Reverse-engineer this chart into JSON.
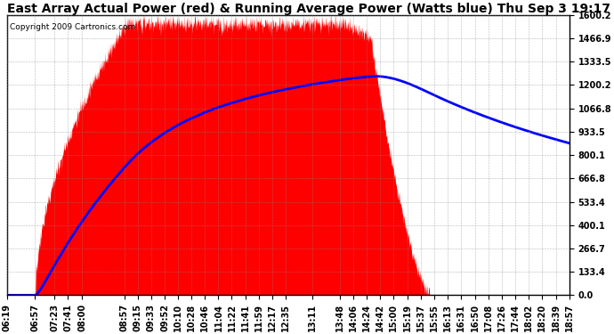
{
  "title": "East Array Actual Power (red) & Running Average Power (Watts blue) Thu Sep 3 19:17",
  "copyright": "Copyright 2009 Cartronics.com",
  "bg_color": "#ffffff",
  "plot_bg_color": "#ffffff",
  "grid_color": "#888888",
  "yticks": [
    0.0,
    133.4,
    266.7,
    400.1,
    533.4,
    666.8,
    800.1,
    933.5,
    1066.8,
    1200.2,
    1333.5,
    1466.9,
    1600.2
  ],
  "ytick_labels": [
    "0.0",
    "133.4",
    "266.7",
    "400.1",
    "533.4",
    "666.8",
    "800.1",
    "933.5",
    "1066.8",
    "1200.2",
    "1333.5",
    "1466.9",
    "1600.2"
  ],
  "ymax": 1600.2,
  "ymin": 0.0,
  "xtick_labels": [
    "06:19",
    "06:57",
    "07:23",
    "07:41",
    "08:00",
    "08:57",
    "09:15",
    "09:33",
    "09:52",
    "10:10",
    "10:28",
    "10:46",
    "11:04",
    "11:22",
    "11:41",
    "11:59",
    "12:17",
    "12:35",
    "13:11",
    "13:48",
    "14:06",
    "14:24",
    "14:42",
    "15:00",
    "15:19",
    "15:37",
    "15:55",
    "16:13",
    "16:31",
    "16:50",
    "17:08",
    "17:26",
    "17:44",
    "18:02",
    "18:20",
    "18:39",
    "18:57"
  ],
  "actual_color": "#ff0000",
  "avg_color": "#0000ff",
  "title_fontsize": 10,
  "tick_fontsize": 7,
  "copyright_fontsize": 6.5
}
